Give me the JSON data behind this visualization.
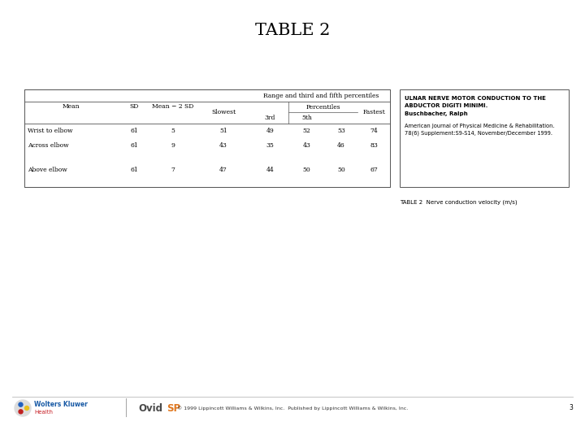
{
  "title": "TABLE 2",
  "bg": "#ffffff",
  "table_rows": [
    [
      "Wrist to elbow",
      "61",
      "5",
      "51",
      "49",
      "52",
      "53",
      "74"
    ],
    [
      "Across elbow",
      "61",
      "9",
      "43",
      "35",
      "43",
      "46",
      "83"
    ],
    [
      "Above elbow",
      "61",
      "7",
      "47",
      "44",
      "50",
      "50",
      "67"
    ]
  ],
  "ref_bold_lines": [
    "ULNAR NERVE MOTOR CONDUCTION TO THE",
    "ABDUCTOR DIGITI MINIMI.",
    "Buschbacher, Ralph"
  ],
  "ref_journal": "American Journal of Physical Medicine & Rehabilitation.\n78(6) Supplement:S9-S14, November/December 1999.",
  "caption": "TABLE 2  Nerve conduction velocity (m/s)",
  "footer_text": "© 1999 Lippincott Williams & Wilkins, Inc.  Published by Lippincott Williams & Wilkins, Inc.",
  "footer_page": "3",
  "wk_color": "#1a5ba6",
  "health_color": "#c8232a",
  "ovid_color": "#4a4a4a",
  "sp_color": "#e07820"
}
